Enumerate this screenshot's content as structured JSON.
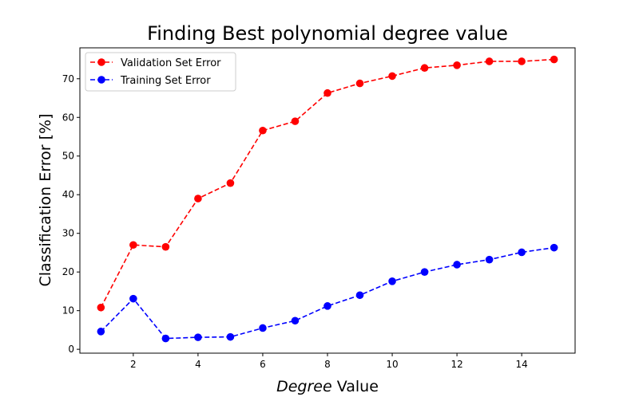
{
  "chart_data": {
    "type": "line",
    "title": "Finding Best polynomial degree value",
    "xlabel_italic": "Degree",
    "xlabel_rest": " Value",
    "ylabel": "Classification Error [%]",
    "x": [
      1,
      2,
      3,
      4,
      5,
      6,
      7,
      8,
      9,
      10,
      11,
      12,
      13,
      14,
      15
    ],
    "xlim": [
      0.35,
      15.65
    ],
    "ylim": [
      -1,
      78
    ],
    "xticks": [
      2,
      4,
      6,
      8,
      10,
      12,
      14
    ],
    "yticks": [
      0,
      10,
      20,
      30,
      40,
      50,
      60,
      70
    ],
    "legend_position": "upper-left",
    "grid": false,
    "series": [
      {
        "name": "Validation Set Error",
        "color": "#ff0000",
        "linestyle": "dashed",
        "marker": "circle",
        "values": [
          10.8,
          27.0,
          26.5,
          39.0,
          43.0,
          56.6,
          59.0,
          66.3,
          68.8,
          70.7,
          72.8,
          73.5,
          74.5,
          74.5,
          75.0
        ]
      },
      {
        "name": "Training Set Error",
        "color": "#0000ff",
        "linestyle": "dashed",
        "marker": "circle",
        "values": [
          4.6,
          13.1,
          2.8,
          3.1,
          3.2,
          5.5,
          7.4,
          11.2,
          14.0,
          17.6,
          20.0,
          21.9,
          23.2,
          25.1,
          26.3
        ]
      }
    ]
  }
}
